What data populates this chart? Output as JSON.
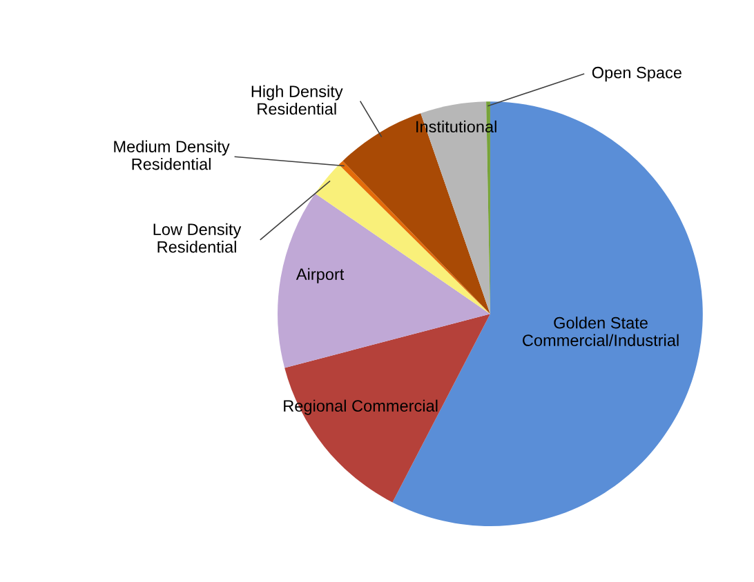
{
  "chart_data": {
    "type": "pie",
    "categories": [
      "Golden State\nCommercial/Industrial",
      "Regional Commercial",
      "Airport",
      "Low Density\nResidential",
      "Medium Density\nResidential",
      "High Density\nResidential",
      "Institutional",
      "Open Space"
    ],
    "values": [
      57.6,
      13.3,
      13.7,
      2.8,
      0.4,
      6.9,
      5.0,
      0.3
    ],
    "colors": [
      "#5a8ed7",
      "#b5413a",
      "#c0a8d6",
      "#f9f07a",
      "#e46c0a",
      "#a94a05",
      "#b7b7b7",
      "#77a33a"
    ]
  }
}
